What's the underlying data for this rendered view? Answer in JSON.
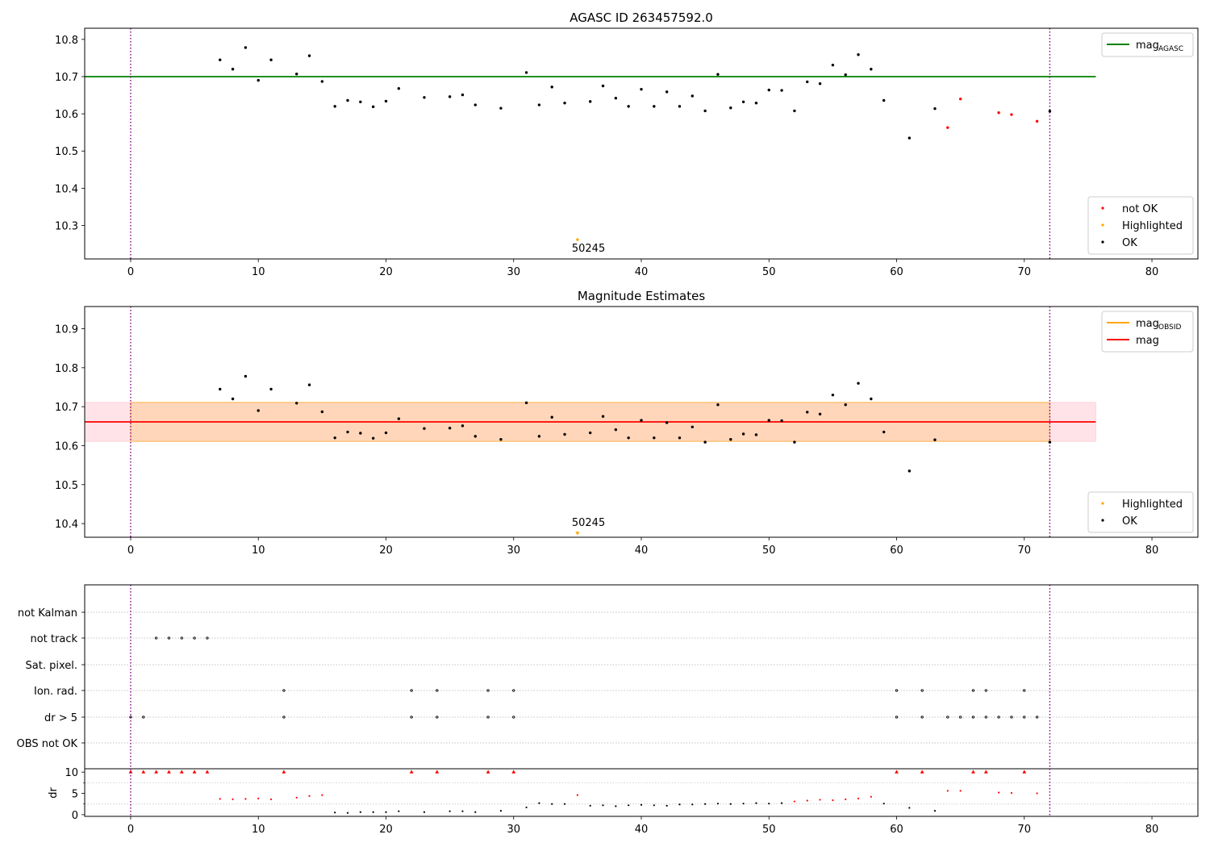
{
  "chart_data": [
    {
      "type": "scatter",
      "title": "AGASC ID 263457592.0",
      "xlim": [
        -3.6,
        83.6
      ],
      "ylim": [
        10.21,
        10.83
      ],
      "xticks": [
        0,
        10,
        20,
        30,
        40,
        50,
        60,
        70,
        80
      ],
      "yticks": [
        10.3,
        10.4,
        10.5,
        10.6,
        10.7,
        10.8
      ],
      "vlines": [
        0,
        72
      ],
      "hline": {
        "y": 10.7,
        "x_range": [
          -3.6,
          75.6
        ],
        "color": "#008000",
        "label": "mag",
        "label_sub": "AGASC"
      },
      "annotation": {
        "text": "50245",
        "x": 35,
        "y": 10.262
      },
      "series": [
        {
          "name": "OK",
          "color": "#000000",
          "points": [
            [
              7,
              10.745
            ],
            [
              8,
              10.72
            ],
            [
              9,
              10.778
            ],
            [
              10,
              10.69
            ],
            [
              11,
              10.745
            ],
            [
              13,
              10.707
            ],
            [
              14,
              10.756
            ],
            [
              15,
              10.687
            ],
            [
              16,
              10.62
            ],
            [
              17,
              10.636
            ],
            [
              18,
              10.632
            ],
            [
              19,
              10.619
            ],
            [
              20,
              10.634
            ],
            [
              21,
              10.668
            ],
            [
              23,
              10.644
            ],
            [
              25,
              10.646
            ],
            [
              26,
              10.651
            ],
            [
              27,
              10.624
            ],
            [
              29,
              10.615
            ],
            [
              31,
              10.711
            ],
            [
              32,
              10.624
            ],
            [
              33,
              10.672
            ],
            [
              34,
              10.629
            ],
            [
              36,
              10.633
            ],
            [
              37,
              10.675
            ],
            [
              38,
              10.642
            ],
            [
              39,
              10.62
            ],
            [
              40,
              10.666
            ],
            [
              41,
              10.62
            ],
            [
              42,
              10.659
            ],
            [
              43,
              10.62
            ],
            [
              44,
              10.648
            ],
            [
              45,
              10.608
            ],
            [
              46,
              10.706
            ],
            [
              47,
              10.616
            ],
            [
              48,
              10.632
            ],
            [
              49,
              10.629
            ],
            [
              50,
              10.664
            ],
            [
              51,
              10.663
            ],
            [
              52,
              10.608
            ],
            [
              53,
              10.686
            ],
            [
              54,
              10.681
            ],
            [
              55,
              10.731
            ],
            [
              56,
              10.705
            ],
            [
              57,
              10.759
            ],
            [
              58,
              10.72
            ],
            [
              59,
              10.636
            ],
            [
              61,
              10.535
            ],
            [
              63,
              10.614
            ],
            [
              72,
              10.607
            ]
          ]
        },
        {
          "name": "not OK",
          "color": "#ff0000",
          "points": [
            [
              64,
              10.563
            ],
            [
              65,
              10.64
            ],
            [
              68,
              10.603
            ],
            [
              69,
              10.598
            ],
            [
              71,
              10.58
            ]
          ]
        },
        {
          "name": "Highlighted",
          "color": "#ffa500",
          "points": [
            [
              35,
              10.262
            ]
          ]
        }
      ],
      "legends": [
        {
          "position": "top-right",
          "entries": [
            {
              "kind": "line",
              "label": "mag",
              "label_sub": "AGASC",
              "color": "#008000"
            }
          ]
        },
        {
          "position": "bottom-right",
          "entries": [
            {
              "kind": "dot",
              "label": "not OK",
              "color": "#ff0000"
            },
            {
              "kind": "dot",
              "label": "Highlighted",
              "color": "#ffa500"
            },
            {
              "kind": "dot",
              "label": "OK",
              "color": "#000000"
            }
          ]
        }
      ]
    },
    {
      "type": "scatter",
      "title": "Magnitude Estimates",
      "xlim": [
        -3.6,
        83.6
      ],
      "ylim": [
        10.365,
        10.957
      ],
      "xticks": [
        0,
        10,
        20,
        30,
        40,
        50,
        60,
        70,
        80
      ],
      "yticks": [
        10.4,
        10.5,
        10.6,
        10.7,
        10.8,
        10.9
      ],
      "vlines": [
        0,
        72
      ],
      "hline": {
        "y": 10.661,
        "x_range": [
          -3.6,
          75.6
        ],
        "color": "#ff0000",
        "label": "mag"
      },
      "bands": [
        {
          "y": [
            10.611,
            10.711
          ],
          "x_range": [
            -3.6,
            75.6
          ],
          "color": "#ffc0cb",
          "opacity": 0.45
        },
        {
          "y": [
            10.611,
            10.711
          ],
          "x_range": [
            0,
            72
          ],
          "color": "#ffa500",
          "opacity": 0.2
        }
      ],
      "annotation": {
        "text": "50245",
        "x": 35,
        "y": 10.375
      },
      "series": [
        {
          "name": "OK",
          "color": "#000000",
          "points": [
            [
              7,
              10.745
            ],
            [
              8,
              10.72
            ],
            [
              9,
              10.778
            ],
            [
              10,
              10.69
            ],
            [
              11,
              10.745
            ],
            [
              13,
              10.709
            ],
            [
              14,
              10.756
            ],
            [
              15,
              10.687
            ],
            [
              16,
              10.62
            ],
            [
              17,
              10.635
            ],
            [
              18,
              10.632
            ],
            [
              19,
              10.619
            ],
            [
              20,
              10.633
            ],
            [
              21,
              10.669
            ],
            [
              23,
              10.644
            ],
            [
              25,
              10.645
            ],
            [
              26,
              10.651
            ],
            [
              27,
              10.624
            ],
            [
              29,
              10.616
            ],
            [
              31,
              10.71
            ],
            [
              32,
              10.624
            ],
            [
              33,
              10.673
            ],
            [
              34,
              10.629
            ],
            [
              36,
              10.633
            ],
            [
              37,
              10.675
            ],
            [
              38,
              10.641
            ],
            [
              39,
              10.62
            ],
            [
              40,
              10.665
            ],
            [
              41,
              10.62
            ],
            [
              42,
              10.659
            ],
            [
              43,
              10.62
            ],
            [
              44,
              10.648
            ],
            [
              45,
              10.609
            ],
            [
              46,
              10.705
            ],
            [
              47,
              10.616
            ],
            [
              48,
              10.63
            ],
            [
              49,
              10.628
            ],
            [
              50,
              10.665
            ],
            [
              51,
              10.664
            ],
            [
              52,
              10.609
            ],
            [
              53,
              10.686
            ],
            [
              54,
              10.681
            ],
            [
              55,
              10.73
            ],
            [
              56,
              10.705
            ],
            [
              57,
              10.76
            ],
            [
              58,
              10.72
            ],
            [
              59,
              10.635
            ],
            [
              61,
              10.535
            ],
            [
              63,
              10.615
            ],
            [
              72,
              10.609
            ]
          ]
        },
        {
          "name": "Highlighted",
          "color": "#ffa500",
          "points": [
            [
              35,
              10.375
            ]
          ]
        }
      ],
      "legends": [
        {
          "position": "top-right",
          "entries": [
            {
              "kind": "line",
              "label": "mag",
              "label_sub": "OBSID",
              "color": "#ffa500"
            },
            {
              "kind": "line",
              "label": "mag",
              "color": "#ff0000"
            }
          ]
        },
        {
          "position": "bottom-right",
          "entries": [
            {
              "kind": "dot",
              "label": "Highlighted",
              "color": "#ffa500"
            },
            {
              "kind": "dot",
              "label": "OK",
              "color": "#000000"
            }
          ]
        }
      ]
    },
    {
      "type": "scatter",
      "title": "",
      "xlim": [
        -3.6,
        83.6
      ],
      "xticks": [
        0,
        10,
        20,
        30,
        40,
        50,
        60,
        70,
        80
      ],
      "vlines": [
        0,
        72
      ],
      "flag_rows": [
        {
          "label": "not Kalman",
          "x": []
        },
        {
          "label": "not track",
          "x": [
            2,
            3,
            4,
            5,
            6
          ]
        },
        {
          "label": "Sat. pixel.",
          "x": []
        },
        {
          "label": "Ion. rad.",
          "x": [
            12,
            22,
            24,
            28,
            30,
            60,
            62,
            66,
            67,
            70
          ]
        },
        {
          "label": "dr > 5",
          "x": [
            0,
            1,
            12,
            22,
            24,
            28,
            30,
            60,
            62,
            64,
            65,
            66,
            67,
            68,
            69,
            70,
            71
          ]
        },
        {
          "label": "OBS not OK",
          "x": []
        }
      ],
      "dr": {
        "ylabel": "dr",
        "ylim": [
          -0.4,
          10.6
        ],
        "yticks": [
          0,
          5,
          10
        ],
        "minor_yticks": [
          2.5,
          7.5
        ],
        "series": [
          {
            "name": "dr (not OK)",
            "color": "#ff0000",
            "points": [
              [
                0,
                10
              ],
              [
                1,
                10
              ],
              [
                2,
                10
              ],
              [
                3,
                10
              ],
              [
                4,
                10
              ],
              [
                5,
                10
              ],
              [
                6,
                10
              ],
              [
                7,
                3.7
              ],
              [
                8,
                3.6
              ],
              [
                9,
                3.7
              ],
              [
                10,
                3.8
              ],
              [
                11,
                3.6
              ],
              [
                12,
                10
              ],
              [
                13,
                4.0
              ],
              [
                14,
                4.4
              ],
              [
                15,
                4.6
              ],
              [
                22,
                10
              ],
              [
                24,
                10
              ],
              [
                28,
                10
              ],
              [
                30,
                10
              ],
              [
                35,
                4.6
              ],
              [
                52,
                3.1
              ],
              [
                53,
                3.3
              ],
              [
                54,
                3.5
              ],
              [
                55,
                3.4
              ],
              [
                56,
                3.6
              ],
              [
                57,
                3.8
              ],
              [
                58,
                4.2
              ],
              [
                60,
                10
              ],
              [
                62,
                10
              ],
              [
                64,
                5.6
              ],
              [
                65,
                5.6
              ],
              [
                66,
                10
              ],
              [
                67,
                10
              ],
              [
                68,
                5.2
              ],
              [
                69,
                5.1
              ],
              [
                70,
                10
              ],
              [
                71,
                5.0
              ]
            ]
          },
          {
            "name": "dr (OK)",
            "color": "#000000",
            "points": [
              [
                16,
                0.5
              ],
              [
                17,
                0.4
              ],
              [
                18,
                0.6
              ],
              [
                19,
                0.6
              ],
              [
                20,
                0.6
              ],
              [
                21,
                0.8
              ],
              [
                23,
                0.6
              ],
              [
                25,
                0.8
              ],
              [
                26,
                0.8
              ],
              [
                27,
                0.6
              ],
              [
                29,
                0.9
              ],
              [
                31,
                1.7
              ],
              [
                32,
                2.7
              ],
              [
                33,
                2.5
              ],
              [
                34,
                2.5
              ],
              [
                36,
                2.1
              ],
              [
                37,
                2.2
              ],
              [
                38,
                2.0
              ],
              [
                39,
                2.2
              ],
              [
                40,
                2.3
              ],
              [
                41,
                2.2
              ],
              [
                42,
                2.1
              ],
              [
                43,
                2.4
              ],
              [
                44,
                2.4
              ],
              [
                45,
                2.5
              ],
              [
                46,
                2.6
              ],
              [
                47,
                2.5
              ],
              [
                48,
                2.6
              ],
              [
                49,
                2.7
              ],
              [
                50,
                2.6
              ],
              [
                51,
                2.7
              ],
              [
                59,
                2.6
              ],
              [
                61,
                1.6
              ],
              [
                63,
                0.9
              ]
            ]
          }
        ]
      }
    }
  ]
}
